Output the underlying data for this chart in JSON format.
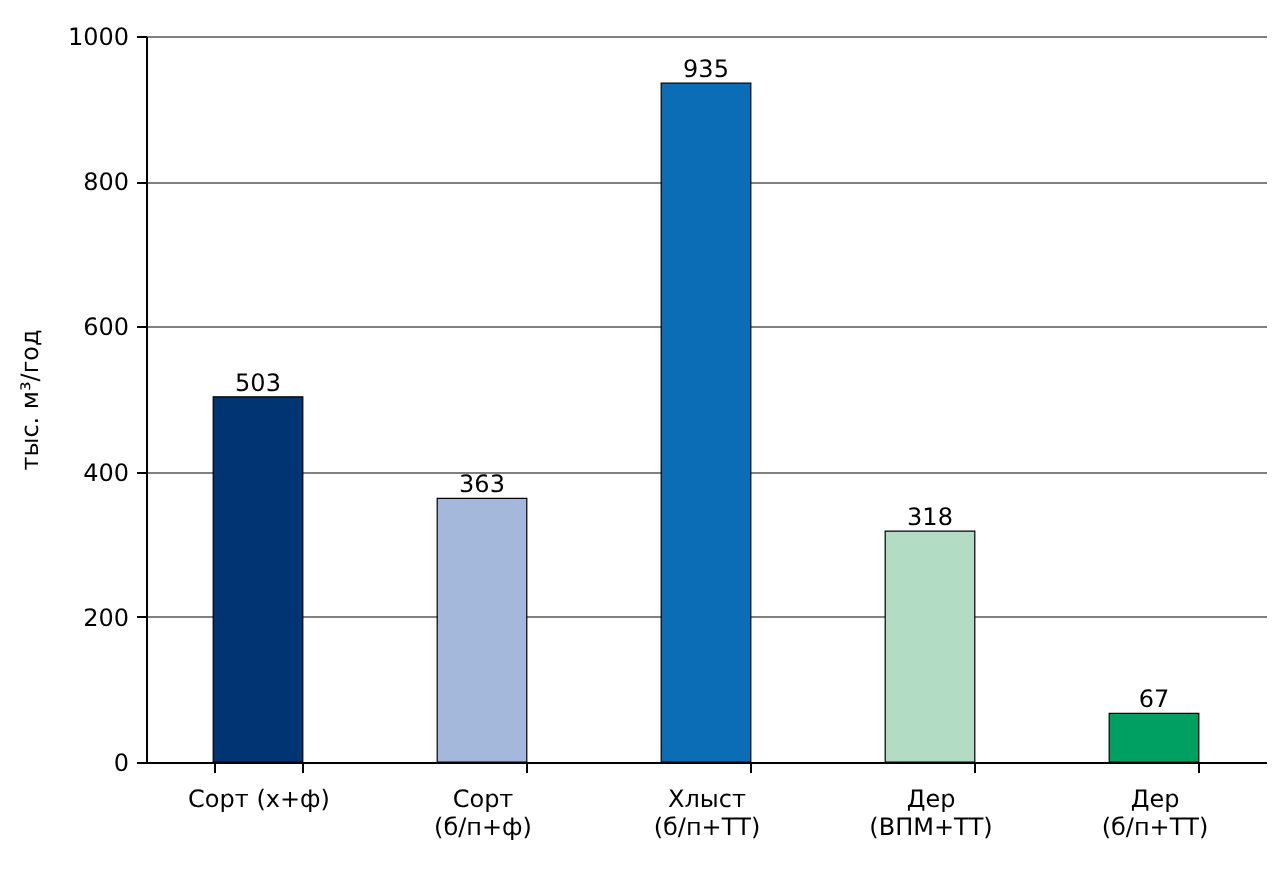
{
  "chart_data": {
    "type": "bar",
    "ylabel": "тыс. м³/год",
    "categories": [
      "Сорт (х+ф)",
      "Сорт\n(б/п+ф)",
      "Хлыст\n(б/п+ТТ)",
      "Дер\n(ВПМ+ТТ)",
      "Дер\n(б/п+ТТ)"
    ],
    "values": [
      503,
      363,
      935,
      318,
      67
    ],
    "colors": [
      "#003473",
      "#a4b8dc",
      "#0b6db5",
      "#b2dcc4",
      "#00a062"
    ],
    "ylim": [
      0,
      1000
    ],
    "yticks": [
      0,
      200,
      400,
      600,
      800,
      1000
    ],
    "grid": "y",
    "data_labels": true
  }
}
